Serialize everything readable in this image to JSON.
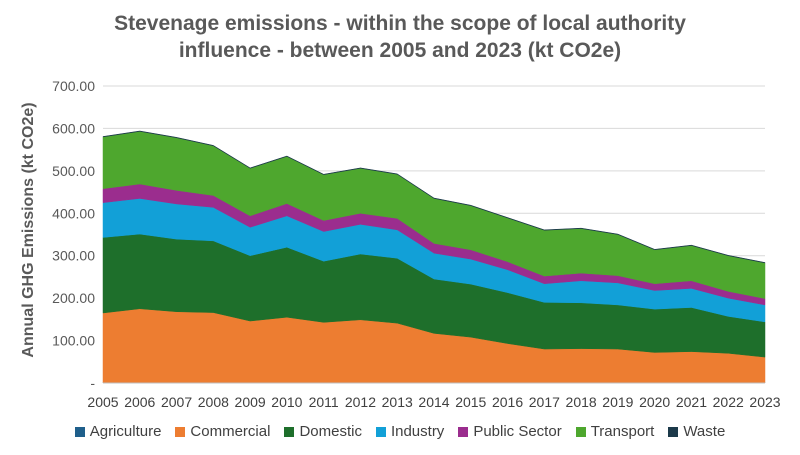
{
  "chart_data": {
    "type": "area",
    "stacked": true,
    "title_line1": "Stevenage emissions - within the scope of local authority",
    "title_line2": "influence - between 2005 and 2023 (kt CO2e)",
    "ylabel": "Annual GHG Emissions (kt CO2e)",
    "xlabel": "",
    "ylim": [
      0,
      700
    ],
    "yticks": [
      "-",
      "100.00",
      "200.00",
      "300.00",
      "400.00",
      "500.00",
      "600.00",
      "700.00"
    ],
    "grid": true,
    "legend_position": "bottom",
    "x": [
      "2005",
      "2006",
      "2007",
      "2008",
      "2009",
      "2010",
      "2011",
      "2012",
      "2013",
      "2014",
      "2015",
      "2016",
      "2017",
      "2018",
      "2019",
      "2020",
      "2021",
      "2022",
      "2023"
    ],
    "series": [
      {
        "name": "Agriculture",
        "color": "#1f5f8b",
        "values": [
          1,
          1,
          1,
          1,
          1,
          1,
          1,
          1,
          1,
          1,
          1,
          1,
          1,
          1,
          1,
          1,
          1,
          1,
          1
        ]
      },
      {
        "name": "Commercial",
        "color": "#ed7d31",
        "values": [
          164,
          174,
          167,
          165,
          145,
          154,
          142,
          148,
          140,
          116,
          107,
          92,
          79,
          80,
          79,
          71,
          73,
          69,
          60
        ]
      },
      {
        "name": "Domestic",
        "color": "#1e6f2b",
        "values": [
          178,
          176,
          171,
          169,
          154,
          165,
          144,
          155,
          153,
          128,
          125,
          120,
          110,
          108,
          104,
          102,
          104,
          87,
          83
        ]
      },
      {
        "name": "Industry",
        "color": "#12a0d7",
        "values": [
          82,
          84,
          83,
          79,
          67,
          74,
          70,
          70,
          67,
          61,
          59,
          54,
          44,
          52,
          52,
          44,
          45,
          43,
          40
        ]
      },
      {
        "name": "Public Sector",
        "color": "#9b2d8e",
        "values": [
          33,
          34,
          32,
          28,
          27,
          29,
          26,
          26,
          27,
          23,
          22,
          19,
          18,
          18,
          17,
          16,
          18,
          16,
          15
        ]
      },
      {
        "name": "Transport",
        "color": "#4ea72e",
        "values": [
          122,
          124,
          124,
          117,
          112,
          111,
          108,
          106,
          104,
          106,
          104,
          103,
          108,
          105,
          97,
          80,
          83,
          84,
          84
        ]
      },
      {
        "name": "Waste",
        "color": "#1c3a4a",
        "values": [
          1,
          1,
          1,
          1,
          1,
          1,
          1,
          1,
          1,
          1,
          1,
          1,
          1,
          1,
          1,
          1,
          1,
          1,
          1
        ]
      }
    ]
  }
}
